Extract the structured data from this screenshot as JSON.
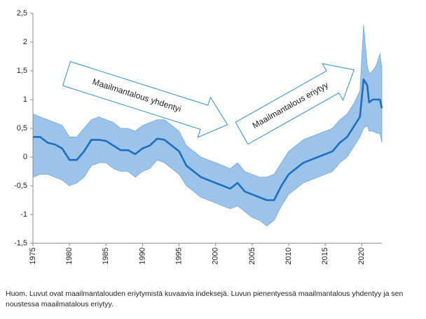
{
  "chart_data": {
    "type": "line",
    "note": "Huom. Luvut ovat maailmantalouden eriytymistä kuvaavia indeksejä. Luvun pienentyessä maailmantalous yhdentyy ja sen noustessa maailmatalous eriytyy.",
    "annotations": [
      "Maailmantalous yhdentyi",
      "Maailmantalous eriytyy"
    ],
    "x": [
      1975,
      1976,
      1977,
      1978,
      1979,
      1980,
      1981,
      1982,
      1983,
      1984,
      1985,
      1986,
      1987,
      1988,
      1989,
      1990,
      1991,
      1992,
      1993,
      1994,
      1995,
      1996,
      1997,
      1998,
      1999,
      2000,
      2001,
      2002,
      2003,
      2004,
      2005,
      2006,
      2007,
      2008,
      2009,
      2010,
      2011,
      2012,
      2013,
      2014,
      2015,
      2016,
      2017,
      2018,
      2019,
      2019.75,
      2020.25,
      2020.75,
      2021,
      2021.5,
      2022,
      2022.5,
      2022.75
    ],
    "series": [
      {
        "color": "#1a6fc0",
        "values": [
          0.35,
          0.35,
          0.25,
          0.22,
          0.15,
          -0.05,
          -0.05,
          0.1,
          0.3,
          0.3,
          0.28,
          0.2,
          0.12,
          0.12,
          0.05,
          0.15,
          0.2,
          0.32,
          0.3,
          0.2,
          0.1,
          -0.15,
          -0.25,
          -0.35,
          -0.4,
          -0.45,
          -0.5,
          -0.55,
          -0.45,
          -0.6,
          -0.65,
          -0.7,
          -0.75,
          -0.75,
          -0.5,
          -0.3,
          -0.2,
          -0.1,
          -0.05,
          0.0,
          0.05,
          0.1,
          0.25,
          0.35,
          0.55,
          0.7,
          1.35,
          1.25,
          0.95,
          1.0,
          1.0,
          1.0,
          0.85
        ]
      },
      {
        "color": "#9cc3ea",
        "values": [
          0.75,
          0.7,
          0.65,
          0.6,
          0.55,
          0.35,
          0.35,
          0.5,
          0.65,
          0.7,
          0.65,
          0.6,
          0.5,
          0.5,
          0.45,
          0.55,
          0.6,
          0.65,
          0.65,
          0.55,
          0.45,
          0.2,
          0.1,
          0.0,
          -0.05,
          -0.1,
          -0.15,
          -0.2,
          -0.1,
          -0.25,
          -0.3,
          -0.35,
          -0.35,
          -0.3,
          -0.1,
          0.1,
          0.2,
          0.3,
          0.35,
          0.4,
          0.45,
          0.5,
          0.65,
          0.75,
          0.95,
          1.15,
          2.3,
          1.6,
          1.45,
          1.5,
          1.6,
          1.8,
          1.55
        ]
      },
      {
        "color": "#9cc3ea",
        "values": [
          -0.35,
          -0.3,
          -0.3,
          -0.35,
          -0.4,
          -0.5,
          -0.45,
          -0.35,
          -0.15,
          -0.1,
          -0.1,
          -0.2,
          -0.25,
          -0.25,
          -0.35,
          -0.25,
          -0.2,
          -0.05,
          -0.1,
          -0.2,
          -0.3,
          -0.5,
          -0.6,
          -0.7,
          -0.75,
          -0.8,
          -0.85,
          -0.9,
          -0.85,
          -0.95,
          -1.05,
          -1.1,
          -1.2,
          -1.1,
          -0.85,
          -0.65,
          -0.55,
          -0.45,
          -0.4,
          -0.35,
          -0.3,
          -0.25,
          -0.1,
          0.0,
          0.2,
          0.35,
          0.5,
          0.55,
          0.45,
          0.45,
          0.42,
          0.4,
          0.25
        ]
      }
    ],
    "xlim": [
      1975,
      2022.75
    ],
    "xticks": [
      1975,
      1980,
      1985,
      1990,
      1995,
      2000,
      2005,
      2010,
      2015,
      2020
    ],
    "ylim": [
      -1.5,
      2.5
    ],
    "yticks": [
      {
        "value": 2.5,
        "label": "2,5"
      },
      2,
      {
        "value": 1.5,
        "label": "1,5"
      },
      1,
      {
        "value": 0.5,
        "label": "0,5"
      },
      0,
      {
        "value": -0.5,
        "label": "-0,5"
      },
      -1,
      {
        "value": -1.5,
        "label": "-1,5"
      }
    ]
  }
}
